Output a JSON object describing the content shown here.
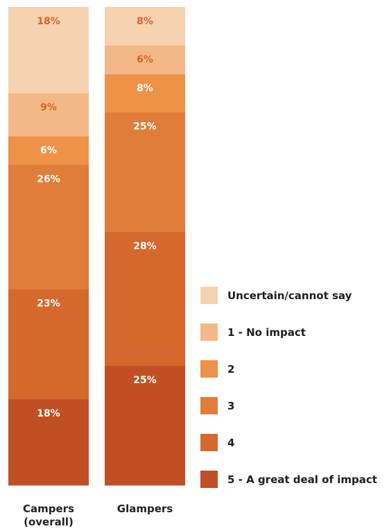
{
  "chart_data": {
    "type": "bar",
    "stacked": true,
    "normalized": true,
    "categories": [
      "Campers\n(overall)",
      "Glampers"
    ],
    "series": [
      {
        "name": "5 - A great deal of impact",
        "values": [
          18,
          25
        ],
        "color": "#c04f23",
        "label_color": "#ffffff"
      },
      {
        "name": "4",
        "values": [
          23,
          28
        ],
        "color": "#d5682d",
        "label_color": "#ffffff"
      },
      {
        "name": "3",
        "values": [
          26,
          25
        ],
        "color": "#e07d39",
        "label_color": "#ffffff"
      },
      {
        "name": "2",
        "values": [
          6,
          8
        ],
        "color": "#ed9247",
        "label_color": "#ffffff"
      },
      {
        "name": "1 - No impact",
        "values": [
          9,
          6
        ],
        "color": "#f2b888",
        "label_color": "#d4652b"
      },
      {
        "name": "Uncertain/cannot say",
        "values": [
          18,
          8
        ],
        "color": "#f6d2b0",
        "label_color": "#d4652b"
      }
    ],
    "value_suffix": "%",
    "legend_position": "right",
    "legend_order": [
      "Uncertain/cannot say",
      "1 - No impact",
      "2",
      "3",
      "4",
      "5 - A great deal of impact"
    ],
    "title": "",
    "xlabel": "",
    "ylabel": "",
    "grid": false
  }
}
